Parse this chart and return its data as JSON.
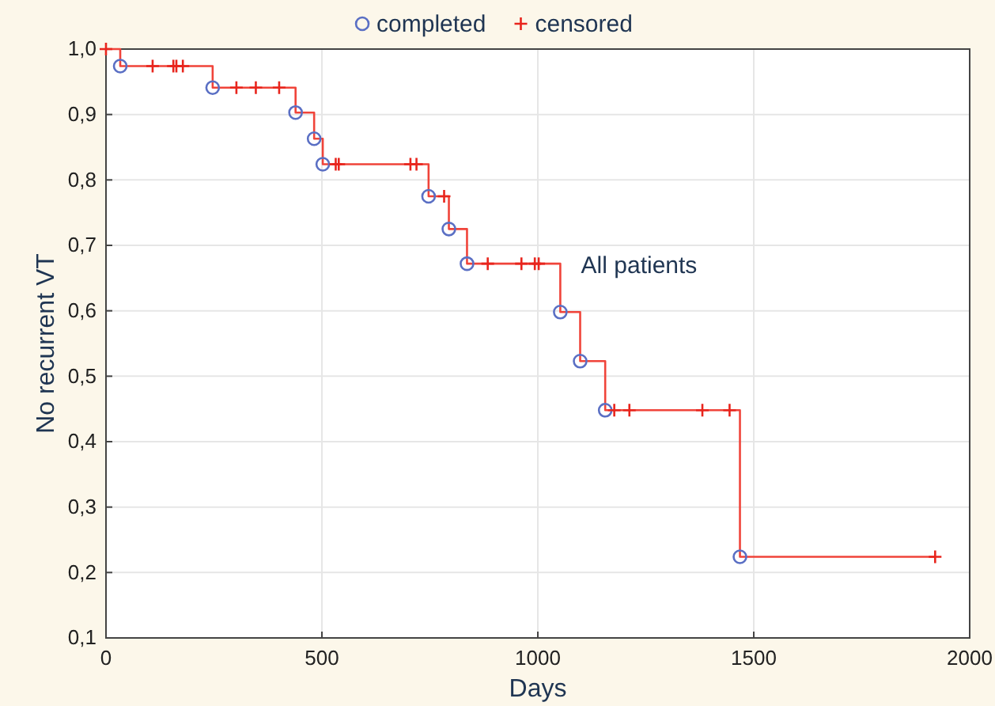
{
  "chart_data": {
    "type": "step",
    "xlabel": "Days",
    "ylabel": "No recurrent VT",
    "annotations": [
      "All patients"
    ],
    "xlim": [
      0,
      2000
    ],
    "xticks": [
      0,
      500,
      1000,
      1500,
      2000
    ],
    "ylim": [
      0.1,
      1.0
    ],
    "yticks": [
      {
        "value": 0.1,
        "label": "0,1"
      },
      {
        "value": 0.2,
        "label": "0,2"
      },
      {
        "value": 0.3,
        "label": "0,3"
      },
      {
        "value": 0.4,
        "label": "0,4"
      },
      {
        "value": 0.5,
        "label": "0,5"
      },
      {
        "value": 0.6,
        "label": "0,6"
      },
      {
        "value": 0.7,
        "label": "0,7"
      },
      {
        "value": 0.8,
        "label": "0,8"
      },
      {
        "value": 0.9,
        "label": "0,9"
      },
      {
        "value": 1.0,
        "label": "1,0"
      }
    ],
    "grid": true,
    "legend": "top",
    "series": [
      {
        "color": "#f0443a",
        "x": [
          0,
          33,
          247,
          439,
          482,
          502,
          747,
          794,
          836,
          1052,
          1098,
          1156,
          1468,
          1920
        ],
        "values": [
          1.0,
          0.974,
          0.941,
          0.903,
          0.863,
          0.824,
          0.775,
          0.725,
          0.672,
          0.598,
          0.523,
          0.448,
          0.224,
          0.224
        ]
      },
      {
        "type": "scatter",
        "name": "completed",
        "marker": "circle",
        "color": "#5a6fc4",
        "x": [
          33,
          247,
          439,
          482,
          502,
          747,
          794,
          836,
          1052,
          1098,
          1156,
          1468
        ],
        "values": [
          0.974,
          0.941,
          0.903,
          0.863,
          0.824,
          0.775,
          0.725,
          0.672,
          0.598,
          0.523,
          0.448,
          0.224
        ]
      },
      {
        "type": "scatter",
        "name": "censored",
        "marker": "cross",
        "color": "#e8251d",
        "x": [
          0,
          108,
          156,
          163,
          178,
          302,
          347,
          401,
          532,
          539,
          705,
          719,
          783,
          884,
          962,
          993,
          1002,
          1177,
          1212,
          1381,
          1444,
          1920
        ],
        "values": [
          1.0,
          0.974,
          0.974,
          0.974,
          0.974,
          0.941,
          0.941,
          0.941,
          0.824,
          0.824,
          0.824,
          0.824,
          0.775,
          0.672,
          0.672,
          0.672,
          0.672,
          0.448,
          0.448,
          0.448,
          0.448,
          0.224
        ]
      }
    ]
  }
}
